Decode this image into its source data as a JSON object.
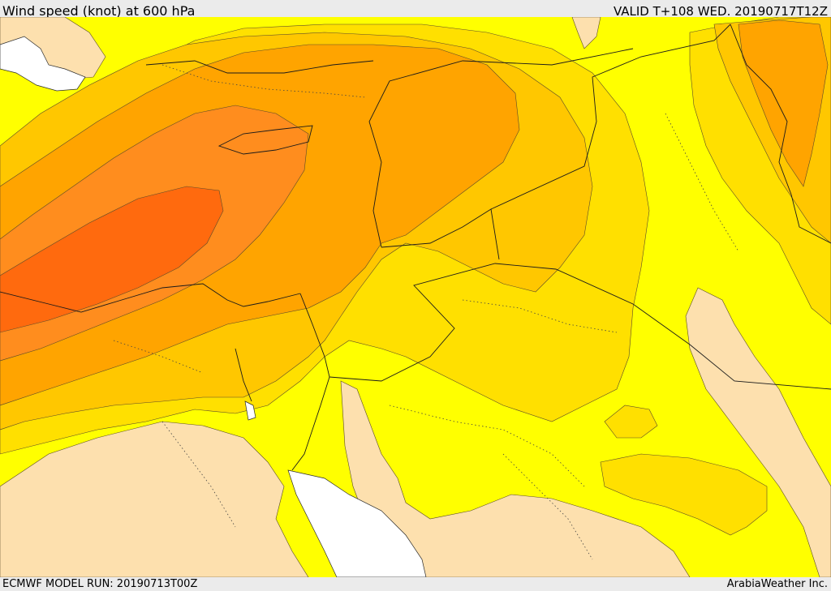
{
  "header": {
    "title": "Wind speed (knot) at 600 hPa",
    "valid": "VALID T+108 WED. 20190717T12Z"
  },
  "footer": {
    "model_run": "ECMWF MODEL RUN: 20190713T00Z",
    "credit": "ArabiaWeather Inc."
  },
  "colors": {
    "sea_white": "#ffffff",
    "band_lowest": "#fde0ae",
    "band_1": "#ffff00",
    "band_2": "#ffe000",
    "band_3": "#ffc700",
    "band_4": "#ffa400",
    "band_5": "#ff8d1e",
    "band_6": "#ff6a0e",
    "band_7": "#ff5a00",
    "coast": "#2b2b2b",
    "contour": "#5a4a2a"
  }
}
